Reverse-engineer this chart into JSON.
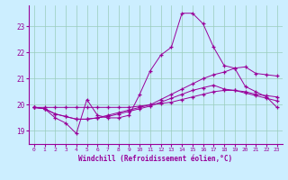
{
  "xlabel": "Windchill (Refroidissement éolien,°C)",
  "bg_color": "#cceeff",
  "line_color": "#990099",
  "grid_color": "#99ccbb",
  "x_ticks": [
    0,
    1,
    2,
    3,
    4,
    5,
    6,
    7,
    8,
    9,
    10,
    11,
    12,
    13,
    14,
    15,
    16,
    17,
    18,
    19,
    20,
    21,
    22,
    23
  ],
  "y_ticks": [
    19,
    20,
    21,
    22,
    23
  ],
  "ylim": [
    18.5,
    23.8
  ],
  "xlim": [
    -0.5,
    23.5
  ],
  "series": [
    [
      19.9,
      19.85,
      19.5,
      19.3,
      18.9,
      20.2,
      19.6,
      19.5,
      19.5,
      19.6,
      20.4,
      21.3,
      21.9,
      22.2,
      23.5,
      23.5,
      23.1,
      22.2,
      21.5,
      21.4,
      20.7,
      20.5,
      20.3,
      19.9
    ],
    [
      19.9,
      19.85,
      19.65,
      19.55,
      19.45,
      19.45,
      19.5,
      19.55,
      19.65,
      19.75,
      19.85,
      19.95,
      20.1,
      20.25,
      20.4,
      20.55,
      20.65,
      20.75,
      20.6,
      20.55,
      20.5,
      20.4,
      20.35,
      20.3
    ],
    [
      19.9,
      19.85,
      19.65,
      19.55,
      19.45,
      19.45,
      19.5,
      19.6,
      19.7,
      19.8,
      19.9,
      20.0,
      20.2,
      20.4,
      20.6,
      20.8,
      21.0,
      21.15,
      21.25,
      21.4,
      21.45,
      21.2,
      21.15,
      21.1
    ],
    [
      19.9,
      19.9,
      19.9,
      19.9,
      19.9,
      19.9,
      19.9,
      19.9,
      19.9,
      19.9,
      19.95,
      20.0,
      20.05,
      20.1,
      20.2,
      20.3,
      20.4,
      20.5,
      20.55,
      20.55,
      20.45,
      20.35,
      20.25,
      20.15
    ]
  ]
}
